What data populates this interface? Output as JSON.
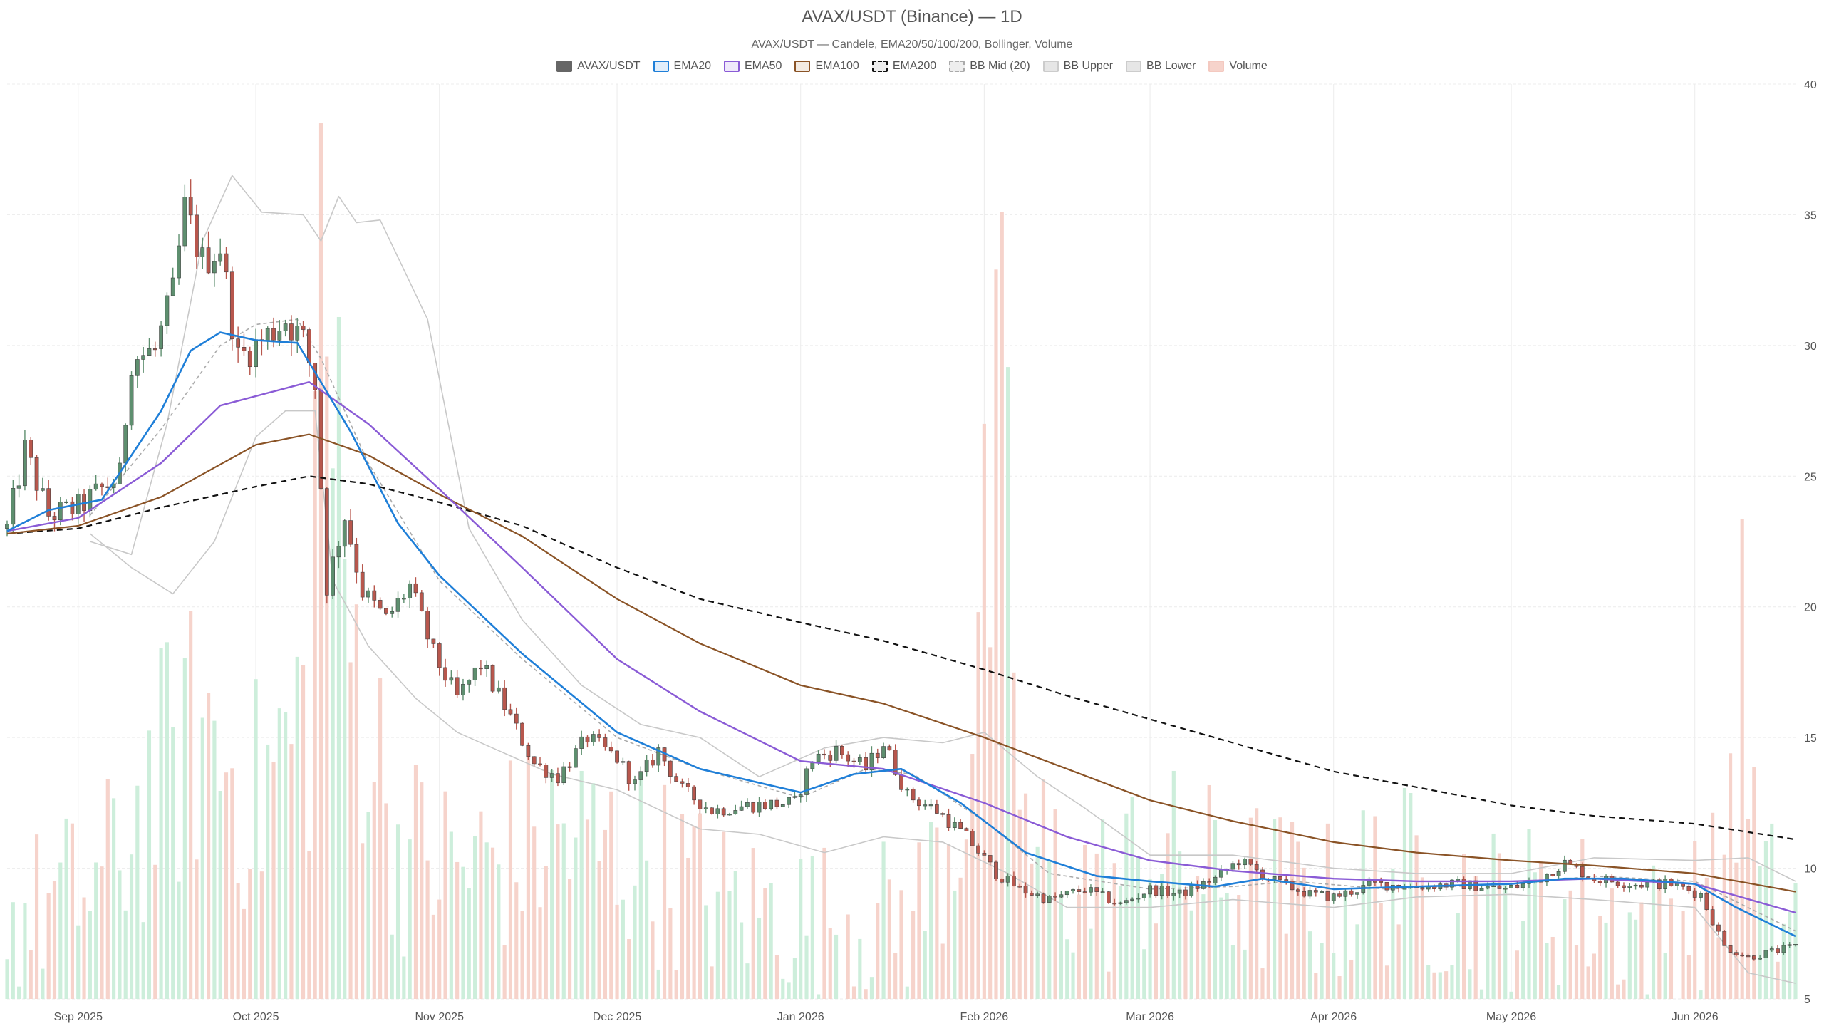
{
  "chart_data": {
    "type": "candlestick",
    "title": "AVAX/USDT (Binance) — 1D",
    "subtitle": "AVAX/USDT — Candele, EMA20/50/100/200, Bollinger, Volume",
    "ylim": [
      5,
      40
    ],
    "y_ticks": [
      5,
      10,
      15,
      20,
      25,
      30,
      35,
      40
    ],
    "x_range": [
      "2025-08-20",
      "2026-06-18"
    ],
    "x_ticks": [
      {
        "date": "2025-09-01",
        "label": "Sep 2025"
      },
      {
        "date": "2025-10-01",
        "label": "Oct 2025"
      },
      {
        "date": "2025-11-01",
        "label": "Nov 2025"
      },
      {
        "date": "2025-12-01",
        "label": "Dec 2025"
      },
      {
        "date": "2026-01-01",
        "label": "Jan 2026"
      },
      {
        "date": "2026-02-01",
        "label": "Feb 2026"
      },
      {
        "date": "2026-03-01",
        "label": "Mar 2026"
      },
      {
        "date": "2026-04-01",
        "label": "Apr 2026"
      },
      {
        "date": "2026-05-01",
        "label": "May 2026"
      },
      {
        "date": "2026-06-01",
        "label": "Jun 2026"
      }
    ],
    "grid": true,
    "legend_position": "top-center",
    "legend": [
      {
        "name": "AVAX/USDT",
        "color": "#666666",
        "fill": "#666666",
        "style": "solid"
      },
      {
        "name": "EMA20",
        "color": "#1f7fd8",
        "fill": "#e1eefb",
        "style": "solid"
      },
      {
        "name": "EMA50",
        "color": "#8a5bd6",
        "fill": "#efe8fb",
        "style": "solid"
      },
      {
        "name": "EMA100",
        "color": "#8a5326",
        "fill": "#f3ebe3",
        "style": "solid"
      },
      {
        "name": "EMA200",
        "color": "#111111",
        "fill": "#eeeeee",
        "style": "dashed"
      },
      {
        "name": "BB Mid (20)",
        "color": "#aaaaaa",
        "fill": "#eeeeee",
        "style": "dashed"
      },
      {
        "name": "BB Upper",
        "color": "#cccccc",
        "fill": "#e6e6e6",
        "style": "solid"
      },
      {
        "name": "BB Lower",
        "color": "#cccccc",
        "fill": "#e6e6e6",
        "style": "solid"
      },
      {
        "name": "Volume",
        "color": "#f4c9c0",
        "fill": "#f6d3cb",
        "style": "solid"
      }
    ],
    "colors": {
      "up": "#5e8f6f",
      "down": "#b8574d",
      "volume_up": "#cdeedb",
      "volume_down": "#f6d3cb",
      "bb": "#c8c8c8",
      "grid": "#ececec"
    },
    "price_path": [
      [
        "2025-08-20",
        23.0
      ],
      [
        "2025-08-23",
        26.0
      ],
      [
        "2025-08-27",
        23.5
      ],
      [
        "2025-09-01",
        23.8
      ],
      [
        "2025-09-05",
        24.5
      ],
      [
        "2025-09-08",
        25.0
      ],
      [
        "2025-09-10",
        29.5
      ],
      [
        "2025-09-14",
        29.8
      ],
      [
        "2025-09-17",
        32.0
      ],
      [
        "2025-09-19",
        35.2
      ],
      [
        "2025-09-22",
        33.2
      ],
      [
        "2025-09-25",
        33.8
      ],
      [
        "2025-09-28",
        29.5
      ],
      [
        "2025-10-02",
        30.2
      ],
      [
        "2025-10-06",
        31.0
      ],
      [
        "2025-10-09",
        30.2
      ],
      [
        "2025-10-11",
        28.5
      ],
      [
        "2025-10-13",
        20.8
      ],
      [
        "2025-10-16",
        23.5
      ],
      [
        "2025-10-19",
        20.6
      ],
      [
        "2025-10-23",
        19.5
      ],
      [
        "2025-10-27",
        20.8
      ],
      [
        "2025-10-31",
        18.2
      ],
      [
        "2025-11-04",
        16.5
      ],
      [
        "2025-11-08",
        17.8
      ],
      [
        "2025-11-12",
        16.2
      ],
      [
        "2025-11-17",
        14.0
      ],
      [
        "2025-11-21",
        13.5
      ],
      [
        "2025-11-26",
        15.0
      ],
      [
        "2025-12-01",
        14.2
      ],
      [
        "2025-12-04",
        13.2
      ],
      [
        "2025-12-08",
        14.5
      ],
      [
        "2025-12-12",
        13.0
      ],
      [
        "2025-12-17",
        12.2
      ],
      [
        "2025-12-23",
        12.4
      ],
      [
        "2025-12-31",
        12.5
      ],
      [
        "2026-01-03",
        14.2
      ],
      [
        "2026-01-07",
        14.5
      ],
      [
        "2026-01-12",
        13.8
      ],
      [
        "2026-01-15",
        14.8
      ],
      [
        "2026-01-19",
        12.8
      ],
      [
        "2026-01-24",
        12.2
      ],
      [
        "2026-01-29",
        11.2
      ],
      [
        "2026-02-03",
        9.8
      ],
      [
        "2026-02-07",
        9.2
      ],
      [
        "2026-02-12",
        8.8
      ],
      [
        "2026-02-18",
        9.2
      ],
      [
        "2026-02-24",
        8.6
      ],
      [
        "2026-03-01",
        9.2
      ],
      [
        "2026-03-06",
        9.0
      ],
      [
        "2026-03-12",
        9.6
      ],
      [
        "2026-03-16",
        10.3
      ],
      [
        "2026-03-22",
        9.5
      ],
      [
        "2026-03-28",
        9.0
      ],
      [
        "2026-04-01",
        8.9
      ],
      [
        "2026-04-08",
        9.4
      ],
      [
        "2026-04-15",
        9.3
      ],
      [
        "2026-04-22",
        9.4
      ],
      [
        "2026-04-30",
        9.2
      ],
      [
        "2026-05-05",
        9.5
      ],
      [
        "2026-05-10",
        10.2
      ],
      [
        "2026-05-15",
        9.6
      ],
      [
        "2026-05-22",
        9.4
      ],
      [
        "2026-05-28",
        9.4
      ],
      [
        "2026-06-02",
        9.0
      ],
      [
        "2026-06-06",
        7.0
      ],
      [
        "2026-06-10",
        6.6
      ],
      [
        "2026-06-18",
        7.0
      ]
    ],
    "volume_path": [
      [
        "2025-08-20",
        8.8
      ],
      [
        "2025-09-05",
        10.5
      ],
      [
        "2025-09-15",
        15.0
      ],
      [
        "2025-09-22",
        17.0
      ],
      [
        "2025-10-01",
        14.0
      ],
      [
        "2025-10-10",
        18.0
      ],
      [
        "2025-10-12",
        38.5
      ],
      [
        "2025-10-16",
        22.0
      ],
      [
        "2025-10-25",
        12.0
      ],
      [
        "2025-11-05",
        11.0
      ],
      [
        "2025-11-20",
        12.5
      ],
      [
        "2025-12-05",
        11.5
      ],
      [
        "2025-12-20",
        9.5
      ],
      [
        "2026-01-05",
        9.0
      ],
      [
        "2026-01-20",
        9.0
      ],
      [
        "2026-01-28",
        13.5
      ],
      [
        "2026-02-04",
        29.0
      ],
      [
        "2026-02-08",
        12.0
      ],
      [
        "2026-02-20",
        10.0
      ],
      [
        "2026-03-01",
        11.5
      ],
      [
        "2026-03-15",
        10.5
      ],
      [
        "2026-04-01",
        9.5
      ],
      [
        "2026-04-10",
        11.0
      ],
      [
        "2026-04-25",
        9.5
      ],
      [
        "2026-05-10",
        9.5
      ],
      [
        "2026-05-25",
        8.5
      ],
      [
        "2026-06-05",
        10.0
      ],
      [
        "2026-06-09",
        19.5
      ],
      [
        "2026-06-12",
        10.0
      ],
      [
        "2026-06-18",
        9.0
      ]
    ],
    "ema20": [
      [
        "2025-08-20",
        22.9
      ],
      [
        "2025-08-27",
        23.7
      ],
      [
        "2025-09-05",
        24.1
      ],
      [
        "2025-09-15",
        27.5
      ],
      [
        "2025-09-20",
        29.8
      ],
      [
        "2025-09-25",
        30.5
      ],
      [
        "2025-10-01",
        30.2
      ],
      [
        "2025-10-08",
        30.1
      ],
      [
        "2025-10-12",
        28.6
      ],
      [
        "2025-10-17",
        26.7
      ],
      [
        "2025-10-25",
        23.2
      ],
      [
        "2025-11-01",
        21.2
      ],
      [
        "2025-11-15",
        18.2
      ],
      [
        "2025-12-01",
        15.2
      ],
      [
        "2025-12-15",
        13.8
      ],
      [
        "2026-01-01",
        12.9
      ],
      [
        "2026-01-10",
        13.6
      ],
      [
        "2026-01-18",
        13.8
      ],
      [
        "2026-01-28",
        12.5
      ],
      [
        "2026-02-08",
        10.6
      ],
      [
        "2026-02-20",
        9.7
      ],
      [
        "2026-03-01",
        9.5
      ],
      [
        "2026-03-12",
        9.3
      ],
      [
        "2026-03-20",
        9.6
      ],
      [
        "2026-04-01",
        9.2
      ],
      [
        "2026-04-15",
        9.3
      ],
      [
        "2026-05-01",
        9.4
      ],
      [
        "2026-05-10",
        9.6
      ],
      [
        "2026-05-20",
        9.6
      ],
      [
        "2026-06-01",
        9.4
      ],
      [
        "2026-06-08",
        8.5
      ],
      [
        "2026-06-18",
        7.4
      ]
    ],
    "ema50": [
      [
        "2025-08-20",
        22.9
      ],
      [
        "2025-09-01",
        23.4
      ],
      [
        "2025-09-15",
        25.5
      ],
      [
        "2025-09-25",
        27.7
      ],
      [
        "2025-10-05",
        28.3
      ],
      [
        "2025-10-10",
        28.6
      ],
      [
        "2025-10-20",
        27.0
      ],
      [
        "2025-11-01",
        24.5
      ],
      [
        "2025-11-15",
        21.5
      ],
      [
        "2025-12-01",
        18.0
      ],
      [
        "2025-12-15",
        16.0
      ],
      [
        "2026-01-01",
        14.1
      ],
      [
        "2026-01-15",
        13.8
      ],
      [
        "2026-02-01",
        12.5
      ],
      [
        "2026-02-15",
        11.2
      ],
      [
        "2026-03-01",
        10.3
      ],
      [
        "2026-03-15",
        9.9
      ],
      [
        "2026-04-01",
        9.6
      ],
      [
        "2026-04-15",
        9.5
      ],
      [
        "2026-05-01",
        9.5
      ],
      [
        "2026-05-15",
        9.6
      ],
      [
        "2026-06-01",
        9.4
      ],
      [
        "2026-06-18",
        8.3
      ]
    ],
    "ema100": [
      [
        "2025-08-20",
        22.8
      ],
      [
        "2025-09-01",
        23.1
      ],
      [
        "2025-09-15",
        24.2
      ],
      [
        "2025-10-01",
        26.2
      ],
      [
        "2025-10-10",
        26.6
      ],
      [
        "2025-10-20",
        25.8
      ],
      [
        "2025-11-01",
        24.3
      ],
      [
        "2025-11-15",
        22.7
      ],
      [
        "2025-12-01",
        20.3
      ],
      [
        "2025-12-15",
        18.6
      ],
      [
        "2026-01-01",
        17.0
      ],
      [
        "2026-01-15",
        16.3
      ],
      [
        "2026-02-01",
        15.0
      ],
      [
        "2026-02-15",
        13.8
      ],
      [
        "2026-03-01",
        12.6
      ],
      [
        "2026-03-15",
        11.8
      ],
      [
        "2026-04-01",
        11.0
      ],
      [
        "2026-04-15",
        10.6
      ],
      [
        "2026-05-01",
        10.3
      ],
      [
        "2026-05-15",
        10.1
      ],
      [
        "2026-06-01",
        9.8
      ],
      [
        "2026-06-18",
        9.1
      ]
    ],
    "ema200": [
      [
        "2025-08-20",
        22.8
      ],
      [
        "2025-09-01",
        23.0
      ],
      [
        "2025-09-15",
        23.8
      ],
      [
        "2025-10-01",
        24.6
      ],
      [
        "2025-10-10",
        25.0
      ],
      [
        "2025-10-20",
        24.7
      ],
      [
        "2025-11-01",
        24.0
      ],
      [
        "2025-11-15",
        23.1
      ],
      [
        "2025-12-01",
        21.5
      ],
      [
        "2025-12-15",
        20.3
      ],
      [
        "2026-01-01",
        19.4
      ],
      [
        "2026-01-15",
        18.7
      ],
      [
        "2026-02-01",
        17.6
      ],
      [
        "2026-02-15",
        16.6
      ],
      [
        "2026-03-01",
        15.7
      ],
      [
        "2026-03-15",
        14.8
      ],
      [
        "2026-04-01",
        13.7
      ],
      [
        "2026-04-15",
        13.1
      ],
      [
        "2026-05-01",
        12.4
      ],
      [
        "2026-05-15",
        12.0
      ],
      [
        "2026-06-01",
        11.7
      ],
      [
        "2026-06-18",
        11.1
      ]
    ],
    "bb_mid": [
      [
        "2025-09-03",
        23.5
      ],
      [
        "2025-09-15",
        26.8
      ],
      [
        "2025-09-25",
        30.0
      ],
      [
        "2025-10-01",
        30.8
      ],
      [
        "2025-10-08",
        31.0
      ],
      [
        "2025-10-12",
        29.5
      ],
      [
        "2025-10-20",
        25.5
      ],
      [
        "2025-11-01",
        21.0
      ],
      [
        "2025-11-15",
        18.0
      ],
      [
        "2025-12-01",
        15.0
      ],
      [
        "2025-12-15",
        13.8
      ],
      [
        "2026-01-01",
        12.7
      ],
      [
        "2026-01-12",
        13.8
      ],
      [
        "2026-01-20",
        13.6
      ],
      [
        "2026-02-01",
        11.8
      ],
      [
        "2026-02-12",
        9.8
      ],
      [
        "2026-03-01",
        9.2
      ],
      [
        "2026-03-15",
        9.3
      ],
      [
        "2026-03-25",
        9.5
      ],
      [
        "2026-04-10",
        9.2
      ],
      [
        "2026-05-01",
        9.4
      ],
      [
        "2026-05-15",
        9.7
      ],
      [
        "2026-06-01",
        9.5
      ],
      [
        "2026-06-18",
        7.6
      ]
    ],
    "bb_upper": [
      [
        "2025-09-03",
        22.5
      ],
      [
        "2025-09-10",
        22.0
      ],
      [
        "2025-09-16",
        27.0
      ],
      [
        "2025-09-22",
        34.0
      ],
      [
        "2025-09-27",
        36.5
      ],
      [
        "2025-10-02",
        35.1
      ],
      [
        "2025-10-09",
        35.0
      ],
      [
        "2025-10-12",
        34.0
      ],
      [
        "2025-10-15",
        35.7
      ],
      [
        "2025-10-18",
        34.7
      ],
      [
        "2025-10-22",
        34.8
      ],
      [
        "2025-10-30",
        31.0
      ],
      [
        "2025-11-06",
        23.0
      ],
      [
        "2025-11-15",
        19.5
      ],
      [
        "2025-11-25",
        17.0
      ],
      [
        "2025-12-05",
        15.5
      ],
      [
        "2025-12-15",
        15.0
      ],
      [
        "2025-12-25",
        13.5
      ],
      [
        "2026-01-05",
        14.6
      ],
      [
        "2026-01-15",
        15.0
      ],
      [
        "2026-01-25",
        14.8
      ],
      [
        "2026-02-01",
        15.2
      ],
      [
        "2026-02-10",
        13.5
      ],
      [
        "2026-02-18",
        12.3
      ],
      [
        "2026-03-01",
        10.5
      ],
      [
        "2026-03-15",
        10.5
      ],
      [
        "2026-03-22",
        10.3
      ],
      [
        "2026-04-01",
        10.0
      ],
      [
        "2026-04-15",
        9.8
      ],
      [
        "2026-05-01",
        9.8
      ],
      [
        "2026-05-15",
        10.4
      ],
      [
        "2026-06-01",
        10.3
      ],
      [
        "2026-06-10",
        10.4
      ],
      [
        "2026-06-18",
        9.5
      ]
    ],
    "bb_lower": [
      [
        "2025-09-03",
        22.8
      ],
      [
        "2025-09-10",
        21.5
      ],
      [
        "2025-09-17",
        20.5
      ],
      [
        "2025-09-24",
        22.5
      ],
      [
        "2025-10-01",
        26.5
      ],
      [
        "2025-10-06",
        27.5
      ],
      [
        "2025-10-11",
        27.5
      ],
      [
        "2025-10-14",
        21.0
      ],
      [
        "2025-10-20",
        18.5
      ],
      [
        "2025-10-28",
        16.5
      ],
      [
        "2025-11-04",
        15.2
      ],
      [
        "2025-11-10",
        14.6
      ],
      [
        "2025-11-20",
        13.6
      ],
      [
        "2025-12-01",
        13.0
      ],
      [
        "2025-12-15",
        11.5
      ],
      [
        "2025-12-25",
        11.3
      ],
      [
        "2026-01-05",
        10.6
      ],
      [
        "2026-01-15",
        11.2
      ],
      [
        "2026-01-25",
        11.0
      ],
      [
        "2026-02-05",
        9.8
      ],
      [
        "2026-02-15",
        8.5
      ],
      [
        "2026-03-01",
        8.5
      ],
      [
        "2026-03-15",
        8.8
      ],
      [
        "2026-04-01",
        8.5
      ],
      [
        "2026-04-15",
        8.9
      ],
      [
        "2026-05-01",
        9.0
      ],
      [
        "2026-05-15",
        8.8
      ],
      [
        "2026-06-01",
        8.5
      ],
      [
        "2026-06-10",
        6.0
      ],
      [
        "2026-06-18",
        5.6
      ]
    ]
  }
}
